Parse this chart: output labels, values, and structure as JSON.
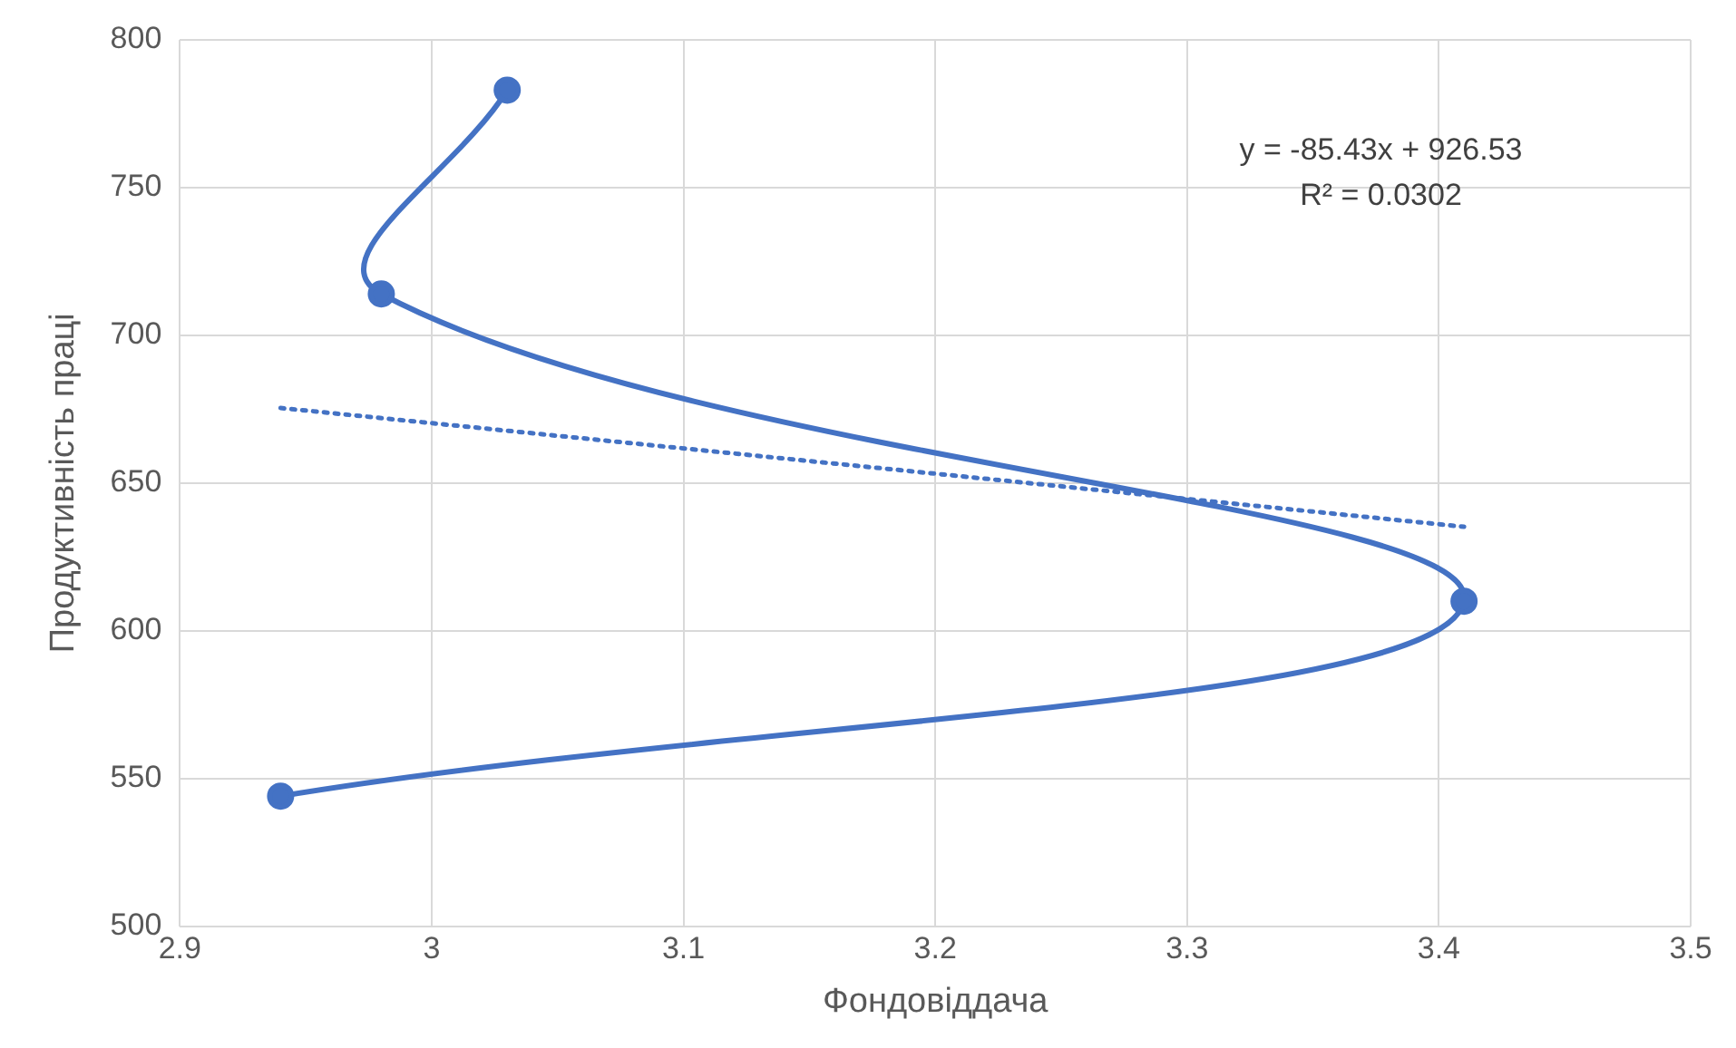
{
  "chart_data": {
    "type": "line",
    "xlabel": "Фондовіддача",
    "ylabel": "Продуктивність праці",
    "xlim": [
      2.9,
      3.5
    ],
    "xticks": [
      2.9,
      3,
      3.1,
      3.2,
      3.3,
      3.4,
      3.5
    ],
    "ylim": [
      500,
      800
    ],
    "yticks": [
      500,
      550,
      600,
      650,
      700,
      750,
      800
    ],
    "grid": true,
    "marker": "circle",
    "series": [
      {
        "color": "#4472c4",
        "x": [
          3.03,
          2.98,
          3.41,
          2.94
        ],
        "values": [
          783,
          714,
          610,
          544
        ],
        "line_style": "solid"
      },
      {
        "color": "#4472c4",
        "x": [
          2.94,
          3.41
        ],
        "values": [
          675.4,
          635.2
        ],
        "marker": "none",
        "line_style": "dotted"
      }
    ],
    "annotations": [
      "y = -85.43x + 926.53",
      "R² = 0.0302"
    ]
  }
}
